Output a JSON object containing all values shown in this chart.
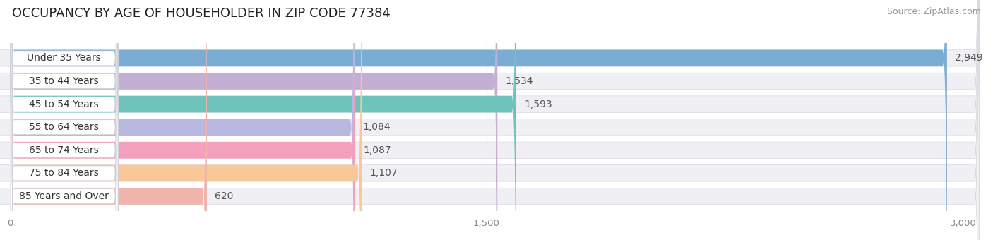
{
  "title": "OCCUPANCY BY AGE OF HOUSEHOLDER IN ZIP CODE 77384",
  "source": "Source: ZipAtlas.com",
  "categories": [
    "Under 35 Years",
    "35 to 44 Years",
    "45 to 54 Years",
    "55 to 64 Years",
    "65 to 74 Years",
    "75 to 84 Years",
    "85 Years and Over"
  ],
  "values": [
    2949,
    1534,
    1593,
    1084,
    1087,
    1107,
    620
  ],
  "bar_colors": [
    "#7aadd4",
    "#c3aed4",
    "#6ec4bc",
    "#b8b8e0",
    "#f4a0bc",
    "#f8c898",
    "#f0b4ac"
  ],
  "xlim": [
    0,
    3000
  ],
  "xticks": [
    0,
    1500,
    3000
  ],
  "xtick_labels": [
    "0",
    "1,500",
    "3,000"
  ],
  "background_color": "#ffffff",
  "row_bg_color": "#f0f0f4",
  "label_pill_color": "#ffffff",
  "title_fontsize": 13,
  "source_fontsize": 9,
  "label_fontsize": 10,
  "value_fontsize": 10
}
